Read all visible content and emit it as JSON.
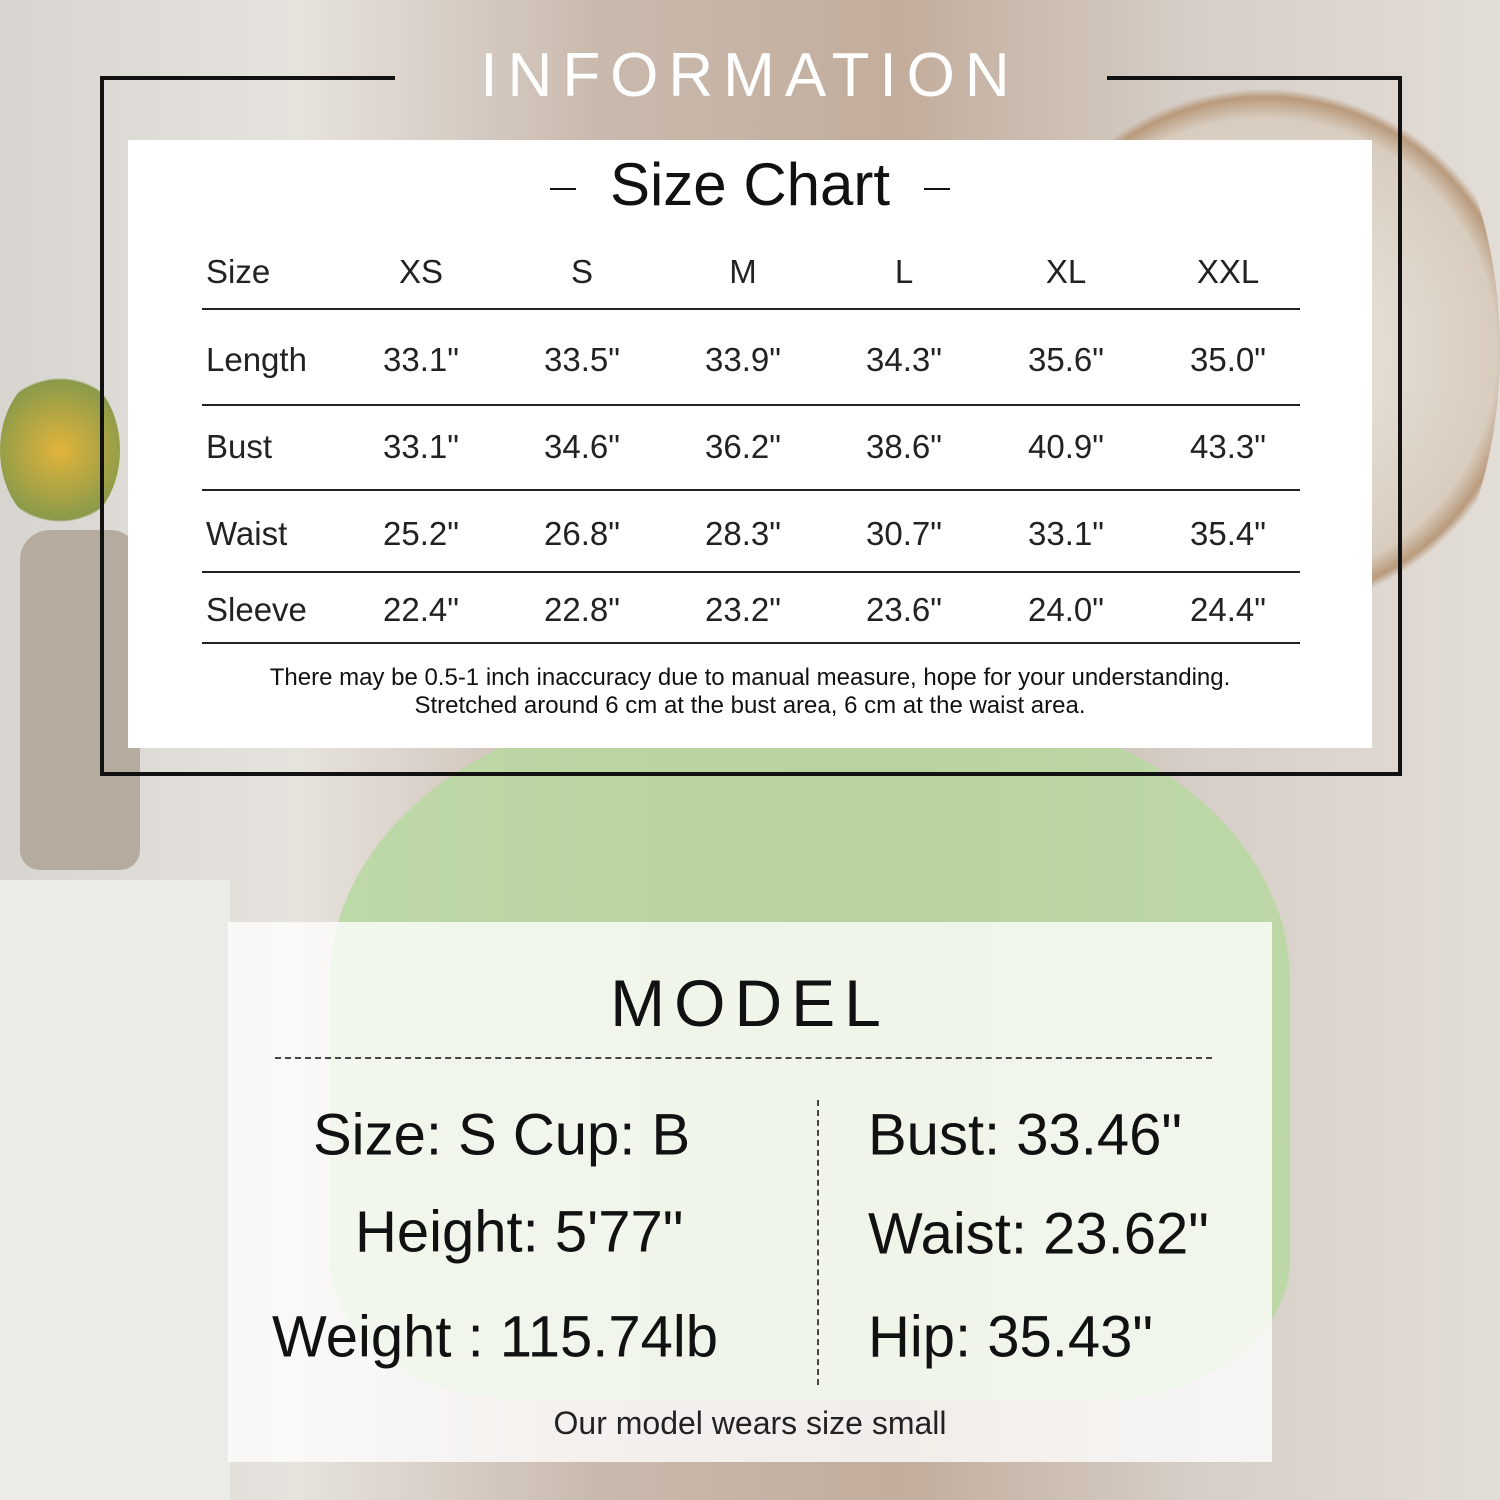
{
  "title": "INFORMATION",
  "size_chart": {
    "title": "Size Chart",
    "header": [
      "Size",
      "XS",
      "S",
      "M",
      "L",
      "XL",
      "XXL"
    ],
    "rows": [
      [
        "Length",
        "33.1\"",
        "33.5\"",
        "33.9\"",
        "34.3\"",
        "35.6\"",
        "35.0\""
      ],
      [
        "Bust",
        "33.1\"",
        "34.6\"",
        "36.2\"",
        "38.6\"",
        "40.9\"",
        "43.3\""
      ],
      [
        "Waist",
        "25.2\"",
        "26.8\"",
        "28.3\"",
        "30.7\"",
        "33.1\"",
        "35.4\""
      ],
      [
        "Sleeve",
        "22.4\"",
        "22.8\"",
        "23.2\"",
        "23.6\"",
        "24.0\"",
        "24.4\""
      ]
    ],
    "note_line1": "There may be 0.5-1 inch inaccuracy due to manual measure, hope for your understanding.",
    "note_line2": "Stretched around 6 cm at the bust area, 6 cm at the waist area."
  },
  "model": {
    "title": "MODEL",
    "left": [
      "Size: S Cup: B",
      "Height: 5'77\"",
      "Weight : 115.74lb"
    ],
    "right": [
      "Bust: 33.46\"",
      "Waist: 23.62\"",
      "Hip: 35.43\""
    ],
    "caption": "Our model wears size small"
  }
}
